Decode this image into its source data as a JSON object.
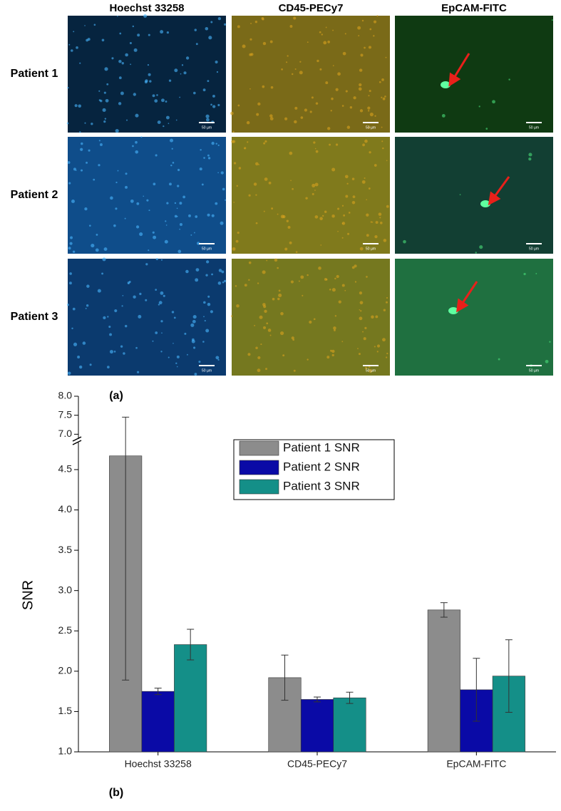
{
  "panel_a": {
    "columns": [
      "Hoechst 33258",
      "CD45-PECy7",
      "EpCAM-FITC"
    ],
    "rows": [
      "Patient 1",
      "Patient 2",
      "Patient 3"
    ],
    "scale_bar_label": "50 µm",
    "panel_label": "(a)"
  },
  "chart_data": {
    "type": "bar",
    "ylabel": "SNR",
    "panel_label": "(b)",
    "categories": [
      "Hoechst 33258",
      "CD45-PECy7",
      "EpCAM-FITC"
    ],
    "series": [
      {
        "name": "Patient 1 SNR",
        "color": "#8c8c8c",
        "values": [
          4.67,
          1.92,
          2.76
        ],
        "errors": [
          2.78,
          0.28,
          0.09
        ]
      },
      {
        "name": "Patient 2 SNR",
        "color": "#0a0aa6",
        "values": [
          1.75,
          1.65,
          1.77
        ],
        "errors": [
          0.04,
          0.03,
          0.39
        ]
      },
      {
        "name": "Patient 3 SNR",
        "color": "#148f88",
        "values": [
          2.33,
          1.67,
          1.94
        ],
        "errors": [
          0.19,
          0.07,
          0.45
        ]
      }
    ],
    "ylim": [
      1.0,
      8.0
    ],
    "y_break": [
      4.8,
      6.95
    ],
    "yticks": [
      {
        "value": 1,
        "label": "1.0"
      },
      1.5,
      {
        "value": 2,
        "label": "2.0"
      },
      2.5,
      {
        "value": 3,
        "label": "3.0"
      },
      3.5,
      {
        "value": 4,
        "label": "4.0"
      },
      4.5,
      {
        "value": 7,
        "label": "7.0"
      },
      7.5,
      {
        "value": 8,
        "label": "8.0"
      }
    ],
    "legend": "top-center"
  }
}
